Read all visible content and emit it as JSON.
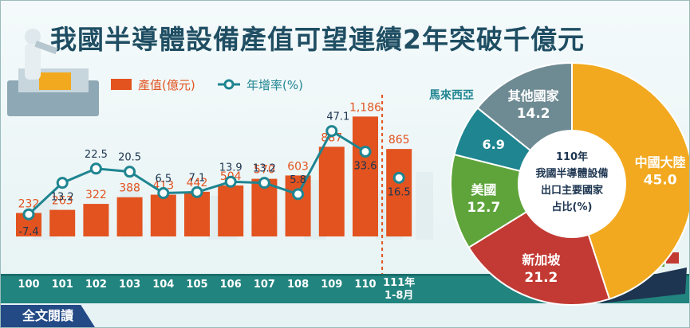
{
  "title": "我國半導體設備產值可望連續2年突破千億元",
  "cta_label": "全文閱讀",
  "icons": [
    "factory-robot-illustration",
    "cargo-ship-illustration"
  ],
  "colors": {
    "bar": "#e2531f",
    "line": "#1f8591",
    "title": "#1f4e63",
    "axis_band": "#22847f"
  },
  "chart_data": [
    {
      "type": "bar",
      "categories": [
        "100",
        "101",
        "102",
        "103",
        "104",
        "105",
        "106",
        "107",
        "108",
        "109",
        "110",
        "111年 1-8月"
      ],
      "series": [
        {
          "name": "產值(億元)",
          "type": "bar",
          "values": [
            232,
            263,
            322,
            388,
            413,
            442,
            504,
            570,
            603,
            887,
            1186,
            865
          ],
          "labels": [
            "232",
            "263",
            "322",
            "388",
            "413",
            "442",
            "504",
            "570",
            "603",
            "887",
            "1,186",
            "865"
          ]
        },
        {
          "name": "年增率(%)",
          "type": "line",
          "values": [
            -7.4,
            13.2,
            22.5,
            20.5,
            6.5,
            7.1,
            13.9,
            13.2,
            5.8,
            47.1,
            33.6,
            16.5
          ]
        }
      ],
      "legend_position": "top-left"
    },
    {
      "type": "pie",
      "title": "110年 我國半導體設備 出口主要國家 占比(%)",
      "slices": [
        {
          "label": "中國大陸",
          "value": 45.0,
          "color": "#f2a91f"
        },
        {
          "label": "新加坡",
          "value": 21.2,
          "color": "#c23a33"
        },
        {
          "label": "美國",
          "value": 12.7,
          "color": "#5ea43a"
        },
        {
          "label": "馬來西亞",
          "value": 6.9,
          "color": "#1f8591"
        },
        {
          "label": "其他國家",
          "value": 14.2,
          "color": "#6e8a93"
        }
      ],
      "value_labels": [
        "45.0",
        "21.2",
        "12.7",
        "6.9",
        "14.2"
      ]
    }
  ]
}
